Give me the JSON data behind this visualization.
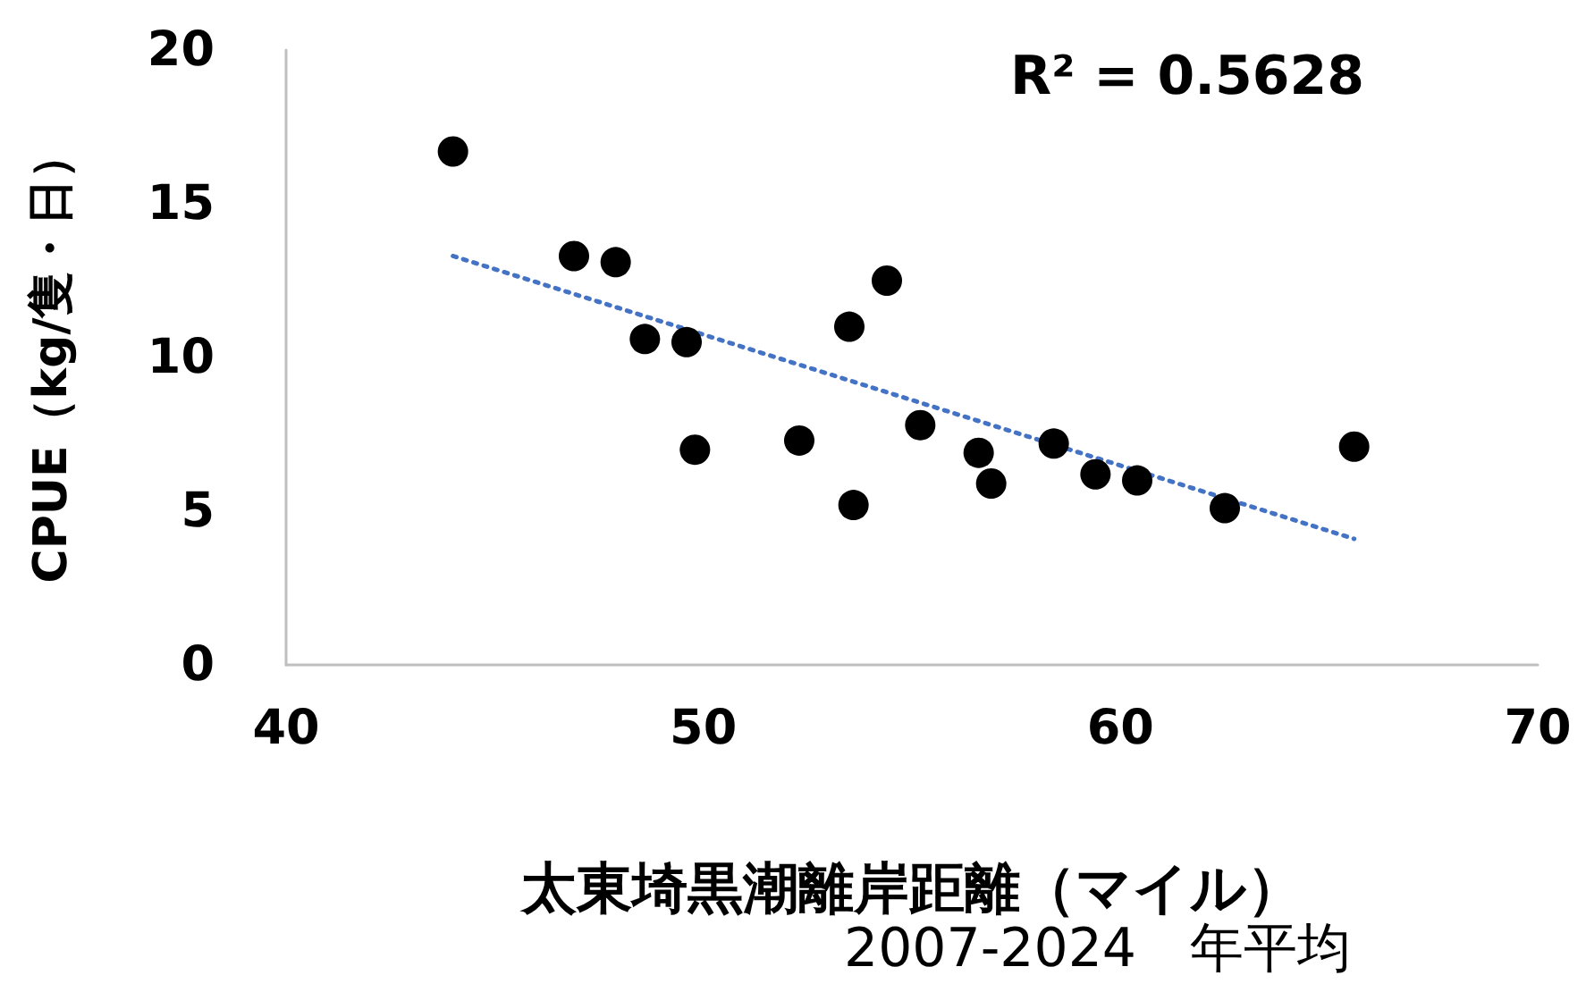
{
  "chart_data": {
    "type": "scatter",
    "xlabel": "太東埼黒潮離岸距離（マイル）",
    "ylabel": "CPUE（kg/隻・日）",
    "annotations": [
      "R² = 0.5628",
      "2007-2024　年平均"
    ],
    "series": [
      {
        "color": "#000000",
        "marker": "circle",
        "x": [
          44.0,
          46.9,
          47.9,
          48.6,
          49.6,
          49.8,
          52.3,
          53.5,
          53.6,
          54.4,
          55.2,
          56.6,
          56.9,
          58.4,
          59.4,
          60.4,
          62.5,
          65.6
        ],
        "values": [
          16.7,
          13.3,
          13.1,
          10.6,
          10.5,
          7.0,
          7.3,
          11.0,
          5.2,
          12.5,
          7.8,
          6.9,
          5.9,
          7.2,
          6.2,
          6.0,
          5.1,
          7.1
        ]
      },
      {
        "type": "line",
        "color": "#4472c4",
        "line_style": "dotted",
        "marker": "none",
        "x": [
          44.0,
          65.6
        ],
        "values": [
          13.3,
          4.1
        ]
      }
    ],
    "xlim": [
      40,
      70
    ],
    "xticks": [
      40,
      50,
      60,
      70
    ],
    "ylim": [
      0,
      20
    ],
    "yticks": [
      0,
      5,
      10,
      15,
      20
    ],
    "grid": false
  }
}
